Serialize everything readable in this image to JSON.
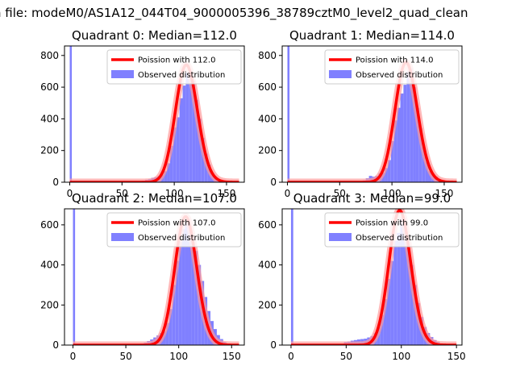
{
  "suptitle": "n file: modeM0/AS1A12_044T04_9000005396_38789cztM0_level2_quad_clean",
  "colors": {
    "observed": "#8080ff",
    "poisson": "#ff0000",
    "poisson_band": "#ff9999"
  },
  "chart_data": [
    {
      "type": "bar",
      "title": "Quadrant 0: Median=112.0",
      "median": 112.0,
      "legend": [
        "Poission with 112.0",
        "Observed distribution"
      ],
      "xlim": [
        -5,
        167
      ],
      "ylim": [
        0,
        860
      ],
      "xticks": [
        0,
        50,
        100,
        150
      ],
      "yticks": [
        0,
        200,
        400,
        600,
        800
      ],
      "spike_x": 0,
      "hist_x": [
        60,
        63,
        66,
        69,
        72,
        75,
        78,
        81,
        84,
        87,
        90,
        93,
        96,
        99,
        102,
        105,
        108,
        111,
        114,
        117,
        120,
        123,
        126,
        129,
        132,
        135,
        138,
        141,
        144,
        147,
        150,
        153,
        156
      ],
      "hist_y": [
        2,
        3,
        6,
        10,
        15,
        20,
        28,
        32,
        40,
        48,
        70,
        120,
        230,
        345,
        410,
        530,
        610,
        695,
        705,
        640,
        520,
        400,
        280,
        180,
        110,
        60,
        30,
        15,
        10,
        5,
        3,
        2,
        1
      ]
    },
    {
      "type": "bar",
      "title": "Quadrant 1: Median=114.0",
      "median": 114.0,
      "legend": [
        "Poission with 114.0",
        "Observed distribution"
      ],
      "xlim": [
        -5,
        167
      ],
      "ylim": [
        0,
        860
      ],
      "xticks": [
        0,
        50,
        100,
        150
      ],
      "yticks": [
        0,
        200,
        400,
        600,
        800
      ],
      "spike_x": 0,
      "hist_x": [
        60,
        63,
        66,
        69,
        72,
        75,
        78,
        81,
        84,
        87,
        90,
        93,
        96,
        99,
        102,
        105,
        108,
        111,
        114,
        117,
        120,
        123,
        126,
        129,
        132,
        135,
        138,
        141,
        144,
        147,
        150,
        153,
        156
      ],
      "hist_y": [
        1,
        2,
        3,
        6,
        12,
        25,
        40,
        35,
        40,
        55,
        60,
        90,
        140,
        260,
        390,
        470,
        560,
        615,
        700,
        720,
        600,
        470,
        340,
        220,
        130,
        70,
        45,
        35,
        20,
        10,
        5,
        3,
        2
      ]
    },
    {
      "type": "bar",
      "title": "Quadrant 2: Median=107.0",
      "median": 107.0,
      "legend": [
        "Poission with 107.0",
        "Observed distribution"
      ],
      "xlim": [
        -8,
        162
      ],
      "ylim": [
        0,
        680
      ],
      "xticks": [
        0,
        50,
        100,
        150
      ],
      "yticks": [
        0,
        200,
        400,
        600
      ],
      "spike_x": 0,
      "hist_x": [
        55,
        58,
        61,
        64,
        67,
        70,
        73,
        76,
        79,
        82,
        85,
        88,
        91,
        94,
        97,
        100,
        103,
        106,
        109,
        112,
        115,
        118,
        121,
        124,
        127,
        130,
        133,
        136,
        139,
        142,
        145,
        148,
        151
      ],
      "hist_y": [
        2,
        3,
        5,
        8,
        12,
        20,
        28,
        38,
        48,
        60,
        70,
        110,
        180,
        300,
        420,
        520,
        580,
        610,
        590,
        540,
        470,
        400,
        320,
        240,
        170,
        120,
        80,
        50,
        30,
        15,
        8,
        4,
        2
      ]
    },
    {
      "type": "bar",
      "title": "Quadrant 3: Median=99.0",
      "median": 99.0,
      "legend": [
        "Poission with 99.0",
        "Observed distribution"
      ],
      "xlim": [
        -8,
        155
      ],
      "ylim": [
        0,
        680
      ],
      "xticks": [
        0,
        50,
        100,
        150
      ],
      "yticks": [
        0,
        200,
        400,
        600
      ],
      "spike_x": 0,
      "hist_x": [
        42,
        45,
        48,
        51,
        54,
        57,
        60,
        63,
        66,
        69,
        72,
        75,
        78,
        81,
        84,
        87,
        90,
        93,
        96,
        99,
        102,
        105,
        108,
        111,
        114,
        117,
        120,
        123,
        126,
        129,
        132,
        135,
        138
      ],
      "hist_y": [
        2,
        3,
        15,
        18,
        22,
        25,
        28,
        30,
        32,
        38,
        45,
        60,
        90,
        150,
        230,
        330,
        420,
        520,
        560,
        640,
        600,
        500,
        400,
        300,
        210,
        140,
        90,
        60,
        40,
        25,
        15,
        8,
        4
      ]
    }
  ]
}
